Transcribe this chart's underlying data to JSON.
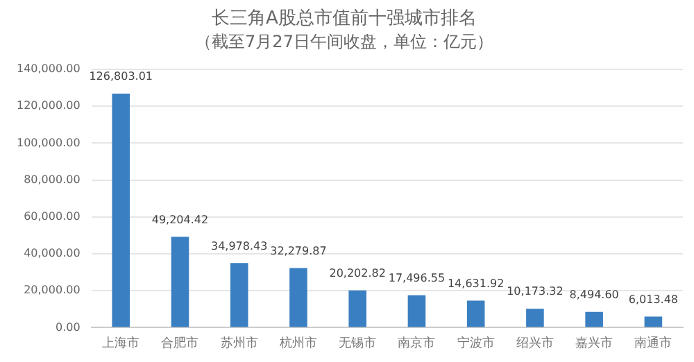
{
  "chart_data": {
    "type": "bar",
    "title": "长三角A股总市值前十强城市排名",
    "subtitle": "（截至7月27日午间收盘，单位：亿元）",
    "categories": [
      "上海市",
      "合肥市",
      "苏州市",
      "杭州市",
      "无锡市",
      "南京市",
      "宁波市",
      "绍兴市",
      "嘉兴市",
      "南通市"
    ],
    "values": [
      126803.01,
      49204.42,
      34978.43,
      32279.87,
      20202.82,
      17496.55,
      14631.92,
      10173.32,
      8494.6,
      6013.48
    ],
    "value_labels": [
      "126,803.01",
      "49,204.42",
      "34,978.43",
      "32,279.87",
      "20,202.82",
      "17,496.55",
      "14,631.92",
      "10,173.32",
      "8,494.60",
      "6,013.48"
    ],
    "color": "#3a7fc1",
    "ylim": [
      0,
      140000
    ],
    "yticks": [
      {
        "value": 0,
        "label": "0.00"
      },
      {
        "value": 20000,
        "label": "20,000.00"
      },
      {
        "value": 40000,
        "label": "40,000.00"
      },
      {
        "value": 60000,
        "label": "60,000.00"
      },
      {
        "value": 80000,
        "label": "80,000.00"
      },
      {
        "value": 100000,
        "label": "100,000.00"
      },
      {
        "value": 120000,
        "label": "120,000.00"
      },
      {
        "value": 140000,
        "label": "140,000.00"
      }
    ],
    "grid": "y",
    "legend": false
  }
}
